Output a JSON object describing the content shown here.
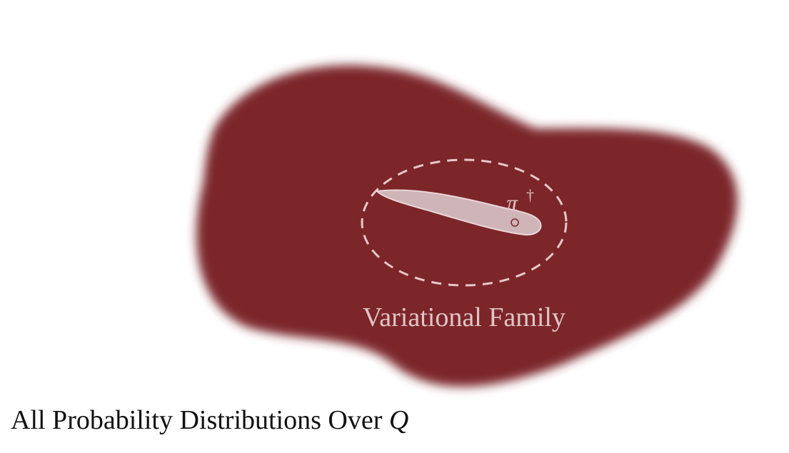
{
  "diagram": {
    "outer_region_label": {
      "text": "All Probability Distributions Over",
      "variable": "Q"
    },
    "inner_region_label": "Variational Family",
    "point_label": {
      "symbol": "π",
      "superscript": "†"
    },
    "colors": {
      "outer_region": "#7b282c",
      "inner_boundary": "#e6c8c8",
      "inner_label": "#e0c5c5",
      "path_fill": "#cfb4b8",
      "path_stroke": "#ead6d8",
      "point_stroke": "#7b282c",
      "caption": "#111111",
      "background": "#ffffff"
    }
  }
}
